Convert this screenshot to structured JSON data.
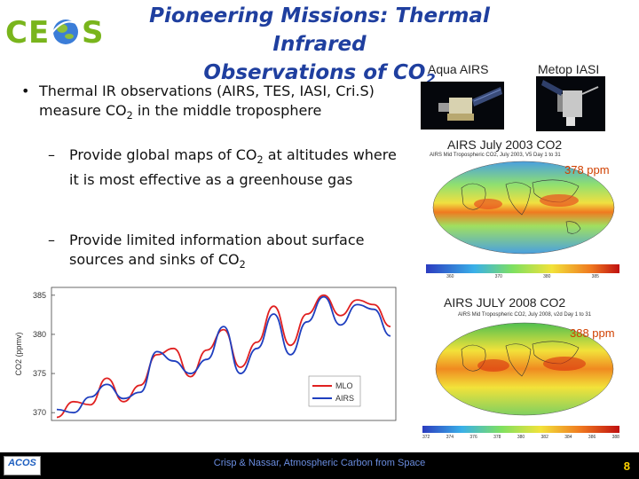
{
  "logo": {
    "text": "CEOS"
  },
  "slide": {
    "title_line1": "Pioneering Missions: Thermal Infrared",
    "title_line2": "Observations of CO",
    "title_sub": "2",
    "page_number": "8"
  },
  "bullets": {
    "main_dot": "•",
    "main_a": "Thermal IR observations (AIRS, TES, IASI, Cri.S)",
    "main_b": "measure CO",
    "main_sub": "2",
    "main_c": " in the middle troposphere",
    "dash": "–",
    "sub1_a": "Provide global maps of  CO",
    "sub1_sub": "2",
    "sub1_b": " at altitudes where it is most effective as a greenhouse gas",
    "sub2_a": "Provide limited information about surface sources and sinks of CO",
    "sub2_sub": "2"
  },
  "satellites": {
    "aqua_label": "Aqua AIRS",
    "metop_label": "Metop IASI"
  },
  "maps": {
    "map1_caption": "AIRS July 2003 CO2",
    "map1_header": "AIRS Mid Tropospheric CO2, July 2003, V5 Day 1 to 31",
    "map1_ppm": "378 ppm",
    "map1_scale": [
      "360",
      "370",
      "380",
      "385"
    ],
    "map2_caption": "AIRS JULY 2008 CO2",
    "map2_header": "AIRS Mid Tropospheric CO2, July 2008, v2d Day 1 to 31",
    "map2_ppm": "388 ppm",
    "map2_scale": [
      "372",
      "374",
      "376",
      "378",
      "380",
      "382",
      "384",
      "386",
      "388"
    ]
  },
  "chart_data": {
    "type": "line",
    "ylabel": "CO2 (ppmv)",
    "yticks": [
      370,
      375,
      380,
      385
    ],
    "ylim": [
      369,
      386
    ],
    "legend": "bottom-right",
    "series": [
      {
        "name": "MLO",
        "color": "#e02020",
        "values": [
          369.4,
          371.4,
          371.0,
          374.4,
          371.4,
          373.5,
          377.4,
          378.2,
          374.6,
          378.0,
          380.6,
          375.8,
          379.0,
          383.6,
          378.6,
          382.6,
          385.0,
          382.4,
          384.4,
          383.8,
          381.0
        ]
      },
      {
        "name": "AIRS",
        "color": "#1f3fbf",
        "values": [
          370.4,
          370.0,
          372.0,
          373.6,
          371.8,
          372.6,
          377.8,
          376.6,
          375.0,
          376.8,
          381.0,
          375.0,
          378.2,
          382.6,
          377.4,
          381.6,
          384.8,
          381.2,
          383.8,
          383.2,
          379.8
        ]
      }
    ]
  },
  "footer": {
    "text": "Crisp & Nassar,  Atmospheric Carbon from Space",
    "acos": "ACOS"
  }
}
